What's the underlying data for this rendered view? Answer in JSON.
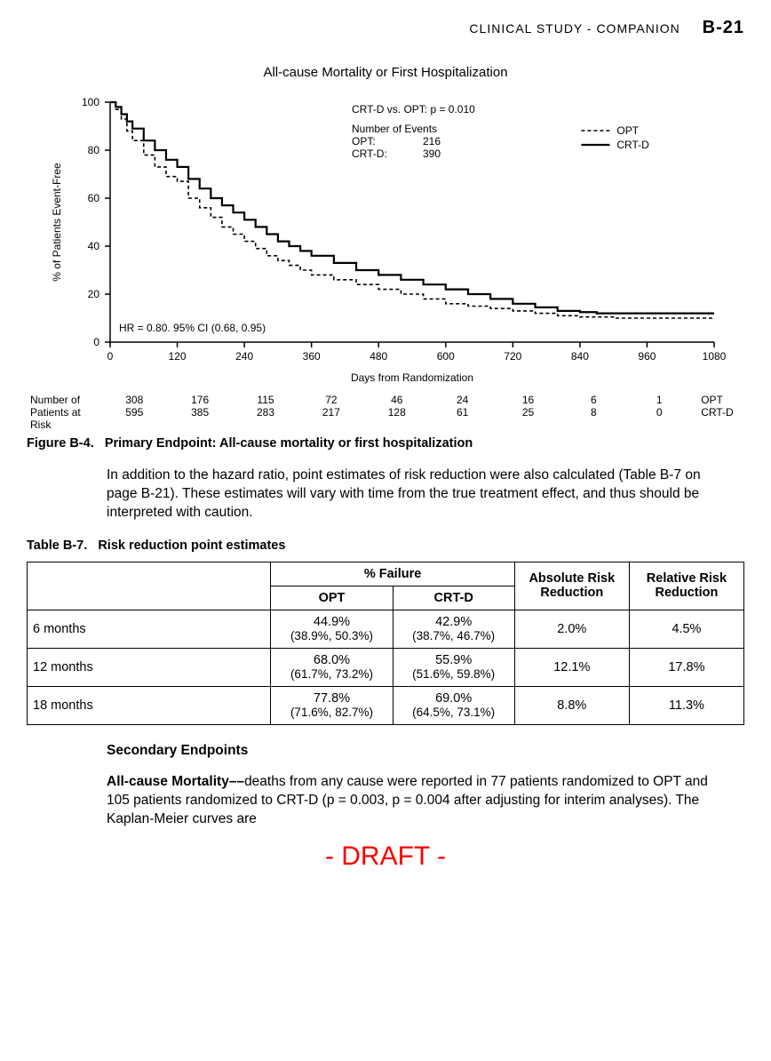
{
  "header": {
    "section": "CLINICAL STUDY - COMPANION",
    "page": "B-21"
  },
  "chart": {
    "type": "line",
    "title": "All-cause Mortality or First Hospitalization",
    "ylabel": "% of Patients Event-Free",
    "xlabel": "Days from Randomization",
    "xlim": [
      0,
      1080
    ],
    "ylim": [
      0,
      100
    ],
    "xticks": [
      0,
      120,
      240,
      360,
      480,
      600,
      720,
      840,
      960,
      1080
    ],
    "yticks": [
      0,
      20,
      40,
      60,
      80,
      100
    ],
    "background_color": "#ffffff",
    "axis_color": "#000000",
    "tick_fontsize": 12,
    "label_fontsize": 12,
    "annotations": {
      "comparison": "CRT-D vs. OPT:  p = 0.010",
      "events_header": "Number of Events",
      "opt_events_label": "OPT:",
      "opt_events": "216",
      "crtd_events_label": "CRT-D:",
      "crtd_events": "390",
      "hr_text": "HR = 0.80. 95% CI (0.68, 0.95)"
    },
    "legend": {
      "opt": "OPT",
      "crtd": "CRT-D"
    },
    "series": {
      "opt": {
        "color": "#000000",
        "dash": "4,3",
        "width": 1.6,
        "points": [
          [
            0,
            100
          ],
          [
            10,
            97
          ],
          [
            20,
            93
          ],
          [
            30,
            88
          ],
          [
            40,
            84
          ],
          [
            60,
            78
          ],
          [
            80,
            73
          ],
          [
            100,
            69
          ],
          [
            120,
            67
          ],
          [
            140,
            60
          ],
          [
            160,
            56
          ],
          [
            180,
            52
          ],
          [
            200,
            48
          ],
          [
            220,
            45
          ],
          [
            240,
            42
          ],
          [
            260,
            39
          ],
          [
            280,
            36
          ],
          [
            300,
            34
          ],
          [
            320,
            32
          ],
          [
            340,
            30
          ],
          [
            360,
            28
          ],
          [
            400,
            26
          ],
          [
            440,
            24
          ],
          [
            480,
            22
          ],
          [
            520,
            20
          ],
          [
            560,
            18
          ],
          [
            600,
            16
          ],
          [
            640,
            15
          ],
          [
            680,
            14
          ],
          [
            720,
            13
          ],
          [
            760,
            12
          ],
          [
            800,
            11
          ],
          [
            840,
            10.5
          ],
          [
            900,
            10
          ],
          [
            960,
            10
          ],
          [
            1020,
            10
          ],
          [
            1080,
            10
          ]
        ]
      },
      "crtd": {
        "color": "#000000",
        "dash": "none",
        "width": 2.2,
        "points": [
          [
            0,
            100
          ],
          [
            10,
            98
          ],
          [
            20,
            95
          ],
          [
            30,
            92
          ],
          [
            40,
            89
          ],
          [
            60,
            84
          ],
          [
            80,
            80
          ],
          [
            100,
            76
          ],
          [
            120,
            73
          ],
          [
            140,
            68
          ],
          [
            160,
            64
          ],
          [
            180,
            60
          ],
          [
            200,
            57
          ],
          [
            220,
            54
          ],
          [
            240,
            51
          ],
          [
            260,
            48
          ],
          [
            280,
            45
          ],
          [
            300,
            42
          ],
          [
            320,
            40
          ],
          [
            340,
            38
          ],
          [
            360,
            36
          ],
          [
            400,
            33
          ],
          [
            440,
            30
          ],
          [
            480,
            28
          ],
          [
            520,
            26
          ],
          [
            560,
            24
          ],
          [
            600,
            22
          ],
          [
            640,
            20
          ],
          [
            680,
            18
          ],
          [
            720,
            16
          ],
          [
            760,
            14.5
          ],
          [
            800,
            13
          ],
          [
            840,
            12.5
          ],
          [
            870,
            12
          ],
          [
            900,
            12
          ],
          [
            960,
            12
          ],
          [
            1020,
            12
          ],
          [
            1080,
            12
          ]
        ]
      }
    },
    "risk_table": {
      "label1": "Number of",
      "label2": "Patients at Risk",
      "rows": [
        {
          "series": "OPT",
          "values": [
            "308",
            "176",
            "115",
            "72",
            "46",
            "24",
            "16",
            "6",
            "1"
          ]
        },
        {
          "series": "CRT-D",
          "values": [
            "595",
            "385",
            "283",
            "217",
            "128",
            "61",
            "25",
            "8",
            "0"
          ]
        }
      ]
    }
  },
  "figure_caption": {
    "num": "Figure B-4.",
    "text": "Primary Endpoint: All-cause mortality or first hospitalization"
  },
  "para1": "In addition to the hazard ratio, point estimates of risk reduction were also calculated (Table B-7 on page B-21). These estimates will vary with time from the true treatment effect, and thus should be interpreted with caution.",
  "table": {
    "caption_num": "Table B-7.",
    "caption_text": "Risk reduction point estimates",
    "col_failure": "% Failure",
    "col_abs": "Absolute Risk Reduction",
    "col_rel": "Relative Risk Reduction",
    "sub_opt": "OPT",
    "sub_crtd": "CRT-D",
    "rows": [
      {
        "label": "6 months",
        "opt": "44.9%",
        "opt_ci": "(38.9%, 50.3%)",
        "crtd": "42.9%",
        "crtd_ci": "(38.7%, 46.7%)",
        "abs": "2.0%",
        "rel": "4.5%"
      },
      {
        "label": "12 months",
        "opt": "68.0%",
        "opt_ci": "(61.7%, 73.2%)",
        "crtd": "55.9%",
        "crtd_ci": "(51.6%, 59.8%)",
        "abs": "12.1%",
        "rel": "17.8%"
      },
      {
        "label": "18 months",
        "opt": "77.8%",
        "opt_ci": "(71.6%, 82.7%)",
        "crtd": "69.0%",
        "crtd_ci": "(64.5%, 73.1%)",
        "abs": "8.8%",
        "rel": "11.3%"
      }
    ]
  },
  "secondary_head": "Secondary Endpoints",
  "para2_runin": "All-cause Mortality––",
  "para2": "deaths from any cause were reported in 77 patients randomized to OPT and 105 patients randomized to CRT-D (p = 0.003, p = 0.004 after adjusting for interim analyses). The Kaplan-Meier curves are",
  "draft": "- DRAFT -"
}
